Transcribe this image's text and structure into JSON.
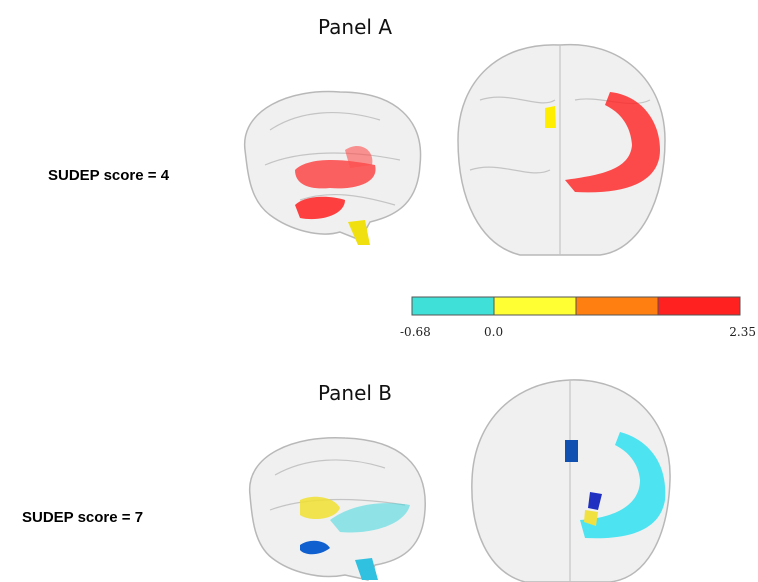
{
  "panels": [
    {
      "title": "Panel A",
      "label": "SUDEP score = 4"
    },
    {
      "title": "Panel  B",
      "label": "SUDEP score = 7"
    }
  ],
  "colorbar": {
    "labels": [
      "-0.68",
      "0.0",
      "2.35"
    ]
  }
}
